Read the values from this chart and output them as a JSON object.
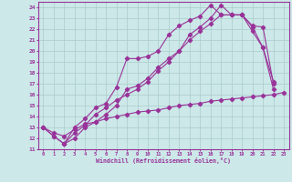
{
  "xlabel": "Windchill (Refroidissement éolien,°C)",
  "bg_color": "#cce8e8",
  "grid_color": "#aacccc",
  "line_color": "#993399",
  "xlim": [
    -0.5,
    23.5
  ],
  "ylim": [
    11,
    24.5
  ],
  "xticks": [
    0,
    1,
    2,
    3,
    4,
    5,
    6,
    7,
    8,
    9,
    10,
    11,
    12,
    13,
    14,
    15,
    16,
    17,
    18,
    19,
    20,
    21,
    22,
    23
  ],
  "yticks": [
    11,
    12,
    13,
    14,
    15,
    16,
    17,
    18,
    19,
    20,
    21,
    22,
    23,
    24
  ],
  "line1_x": [
    0,
    1,
    2,
    3,
    4,
    5,
    6,
    7,
    8,
    9,
    10,
    11,
    12,
    13,
    14,
    15,
    16,
    17,
    18,
    19,
    20,
    21,
    22
  ],
  "line1_y": [
    13.0,
    12.2,
    11.5,
    13.0,
    13.8,
    14.8,
    15.2,
    16.7,
    19.3,
    19.3,
    19.5,
    20.0,
    21.5,
    22.3,
    22.8,
    23.2,
    24.2,
    23.3,
    23.3,
    23.3,
    22.2,
    20.3,
    17.2
  ],
  "line2_x": [
    0,
    1,
    2,
    3,
    4,
    5,
    6,
    7,
    8,
    9,
    10,
    11,
    12,
    13,
    14,
    15,
    16,
    17,
    18,
    19,
    20,
    21,
    22
  ],
  "line2_y": [
    13.0,
    12.2,
    11.5,
    12.5,
    13.2,
    14.2,
    14.8,
    15.5,
    16.0,
    16.5,
    17.2,
    18.2,
    19.0,
    20.0,
    21.0,
    21.8,
    22.5,
    23.3,
    23.3,
    23.3,
    22.3,
    22.2,
    17.0
  ],
  "line3_x": [
    2,
    3,
    4,
    5,
    6,
    7,
    8,
    9,
    10,
    11,
    12,
    13,
    14,
    15,
    16,
    17,
    18,
    19,
    20,
    21,
    22
  ],
  "line3_y": [
    11.5,
    12.0,
    13.0,
    13.5,
    14.2,
    15.0,
    16.5,
    16.8,
    17.5,
    18.5,
    19.3,
    20.0,
    21.5,
    22.2,
    23.0,
    24.2,
    23.3,
    23.3,
    21.8,
    20.3,
    16.5
  ],
  "line4_x": [
    0,
    1,
    2,
    3,
    4,
    5,
    6,
    7,
    8,
    9,
    10,
    11,
    12,
    13,
    14,
    15,
    16,
    17,
    18,
    19,
    20,
    21,
    22,
    23
  ],
  "line4_y": [
    13.0,
    12.5,
    12.2,
    12.8,
    13.3,
    13.5,
    13.8,
    14.0,
    14.2,
    14.4,
    14.5,
    14.6,
    14.8,
    15.0,
    15.1,
    15.2,
    15.4,
    15.5,
    15.6,
    15.7,
    15.8,
    15.9,
    16.0,
    16.2
  ]
}
